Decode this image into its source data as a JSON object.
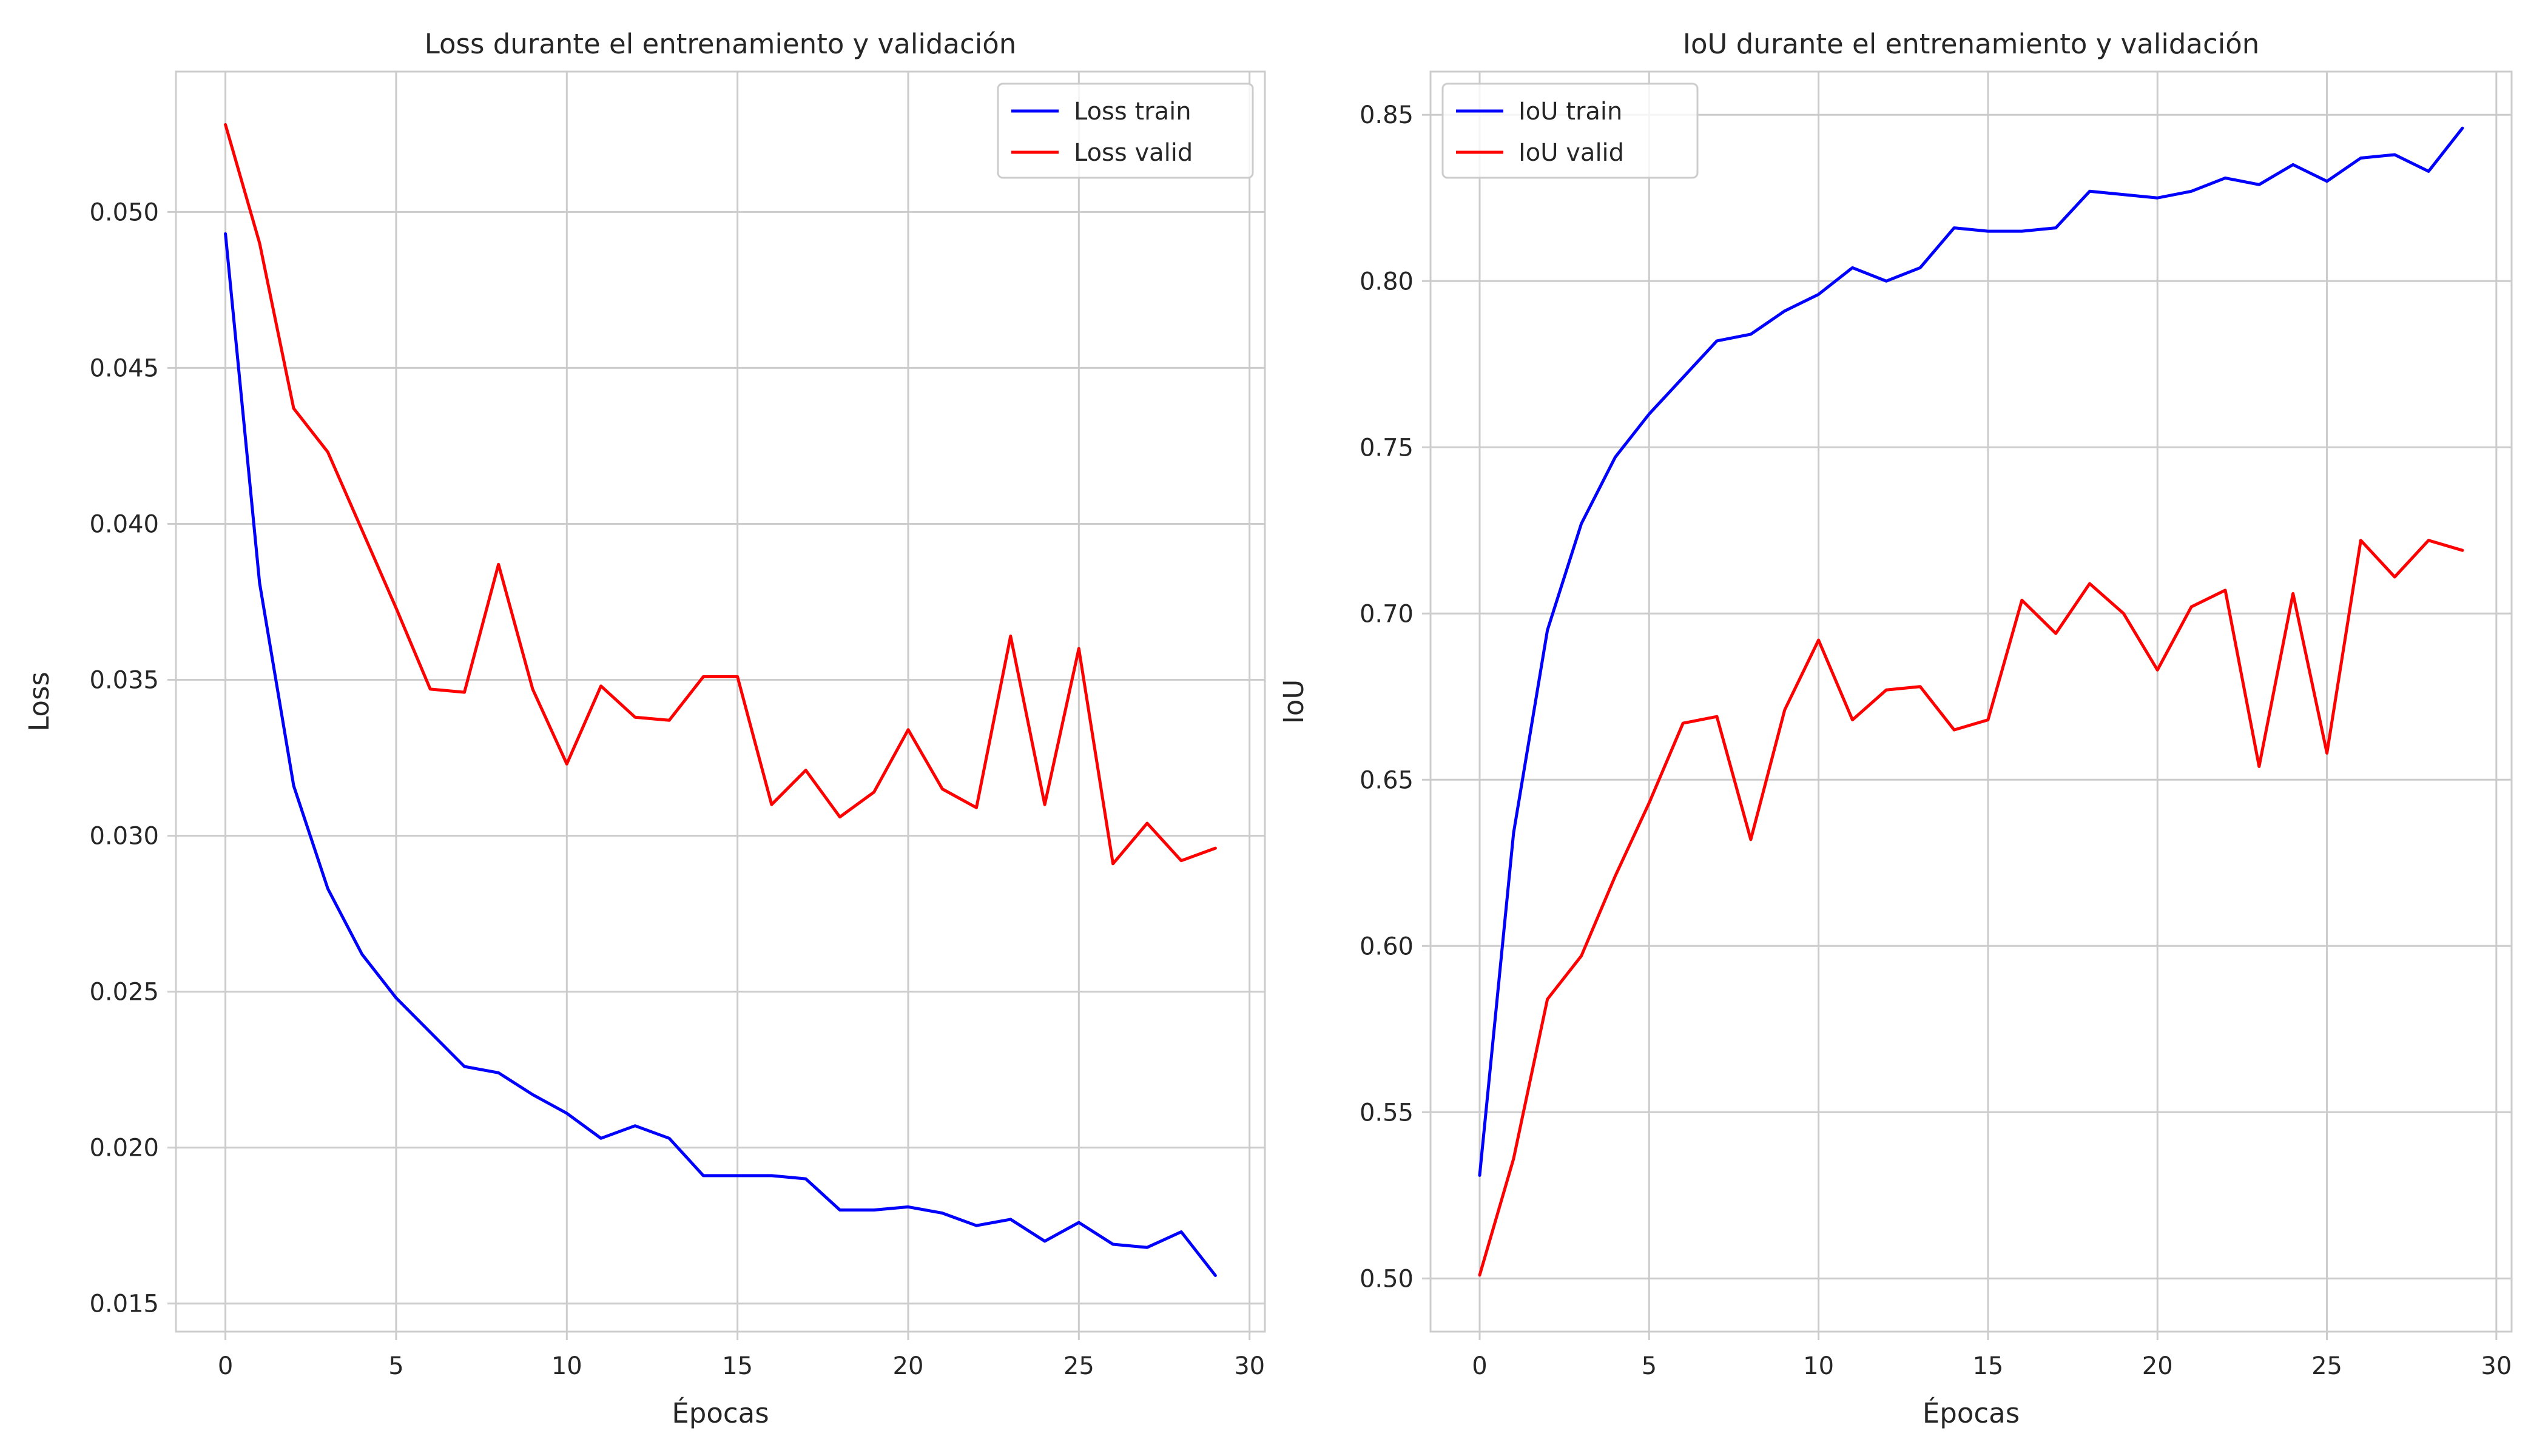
{
  "chart_data": [
    {
      "type": "line",
      "title": "Loss durante el entrenamiento y validación",
      "xlabel": "Épocas",
      "ylabel": "Loss",
      "xlim": [
        -1.45,
        30.45
      ],
      "ylim": [
        0.0141,
        0.0545
      ],
      "xticks": [
        0,
        5,
        10,
        15,
        20,
        25,
        30
      ],
      "xtick_labels": [
        "0",
        "5",
        "10",
        "15",
        "20",
        "25",
        "30"
      ],
      "yticks": [
        0.015,
        0.02,
        0.025,
        0.03,
        0.035,
        0.04,
        0.045,
        0.05
      ],
      "ytick_labels": [
        "0.015",
        "0.020",
        "0.025",
        "0.030",
        "0.035",
        "0.040",
        "0.045",
        "0.050"
      ],
      "grid": true,
      "legend_position": "top-right",
      "x": [
        0,
        1,
        2,
        3,
        4,
        5,
        6,
        7,
        8,
        9,
        10,
        11,
        12,
        13,
        14,
        15,
        16,
        17,
        18,
        19,
        20,
        21,
        22,
        23,
        24,
        25,
        26,
        27,
        28,
        29
      ],
      "series": [
        {
          "name": "Loss train",
          "color": "#0000ff",
          "values": [
            0.0493,
            0.0381,
            0.0316,
            0.0283,
            0.0262,
            0.0248,
            0.0237,
            0.0226,
            0.0224,
            0.0217,
            0.0211,
            0.0203,
            0.0207,
            0.0203,
            0.0191,
            0.0191,
            0.0191,
            0.019,
            0.018,
            0.018,
            0.0181,
            0.0179,
            0.0175,
            0.0177,
            0.017,
            0.0176,
            0.0169,
            0.0168,
            0.0173,
            0.0159
          ]
        },
        {
          "name": "Loss valid",
          "color": "#ff0000",
          "values": [
            0.0528,
            0.049,
            0.0437,
            0.0423,
            0.0398,
            0.0373,
            0.0347,
            0.0346,
            0.0387,
            0.0347,
            0.0323,
            0.0348,
            0.0338,
            0.0337,
            0.0351,
            0.0351,
            0.031,
            0.0321,
            0.0306,
            0.0314,
            0.0334,
            0.0315,
            0.0309,
            0.0364,
            0.031,
            0.036,
            0.0291,
            0.0304,
            0.0292,
            0.0296
          ]
        }
      ]
    },
    {
      "type": "line",
      "title": "IoU durante el entrenamiento y validación",
      "xlabel": "Épocas",
      "ylabel": "IoU",
      "xlim": [
        -1.45,
        30.45
      ],
      "ylim": [
        0.484,
        0.863
      ],
      "xticks": [
        0,
        5,
        10,
        15,
        20,
        25,
        30
      ],
      "xtick_labels": [
        "0",
        "5",
        "10",
        "15",
        "20",
        "25",
        "30"
      ],
      "yticks": [
        0.5,
        0.55,
        0.6,
        0.65,
        0.7,
        0.75,
        0.8,
        0.85
      ],
      "ytick_labels": [
        "0.50",
        "0.55",
        "0.60",
        "0.65",
        "0.70",
        "0.75",
        "0.80",
        "0.85"
      ],
      "grid": true,
      "legend_position": "top-left",
      "x": [
        0,
        1,
        2,
        3,
        4,
        5,
        6,
        7,
        8,
        9,
        10,
        11,
        12,
        13,
        14,
        15,
        16,
        17,
        18,
        19,
        20,
        21,
        22,
        23,
        24,
        25,
        26,
        27,
        28,
        29
      ],
      "series": [
        {
          "name": "IoU train",
          "color": "#0000ff",
          "values": [
            0.531,
            0.634,
            0.695,
            0.727,
            0.747,
            0.76,
            0.771,
            0.782,
            0.784,
            0.791,
            0.796,
            0.804,
            0.8,
            0.804,
            0.816,
            0.815,
            0.815,
            0.816,
            0.827,
            0.826,
            0.825,
            0.827,
            0.831,
            0.829,
            0.835,
            0.83,
            0.837,
            0.838,
            0.833,
            0.846
          ]
        },
        {
          "name": "IoU valid",
          "color": "#ff0000",
          "values": [
            0.501,
            0.536,
            0.584,
            0.597,
            0.621,
            0.643,
            0.667,
            0.669,
            0.632,
            0.671,
            0.692,
            0.668,
            0.677,
            0.678,
            0.665,
            0.668,
            0.704,
            0.694,
            0.709,
            0.7,
            0.683,
            0.702,
            0.707,
            0.654,
            0.706,
            0.658,
            0.722,
            0.711,
            0.722,
            0.719
          ]
        }
      ]
    }
  ]
}
